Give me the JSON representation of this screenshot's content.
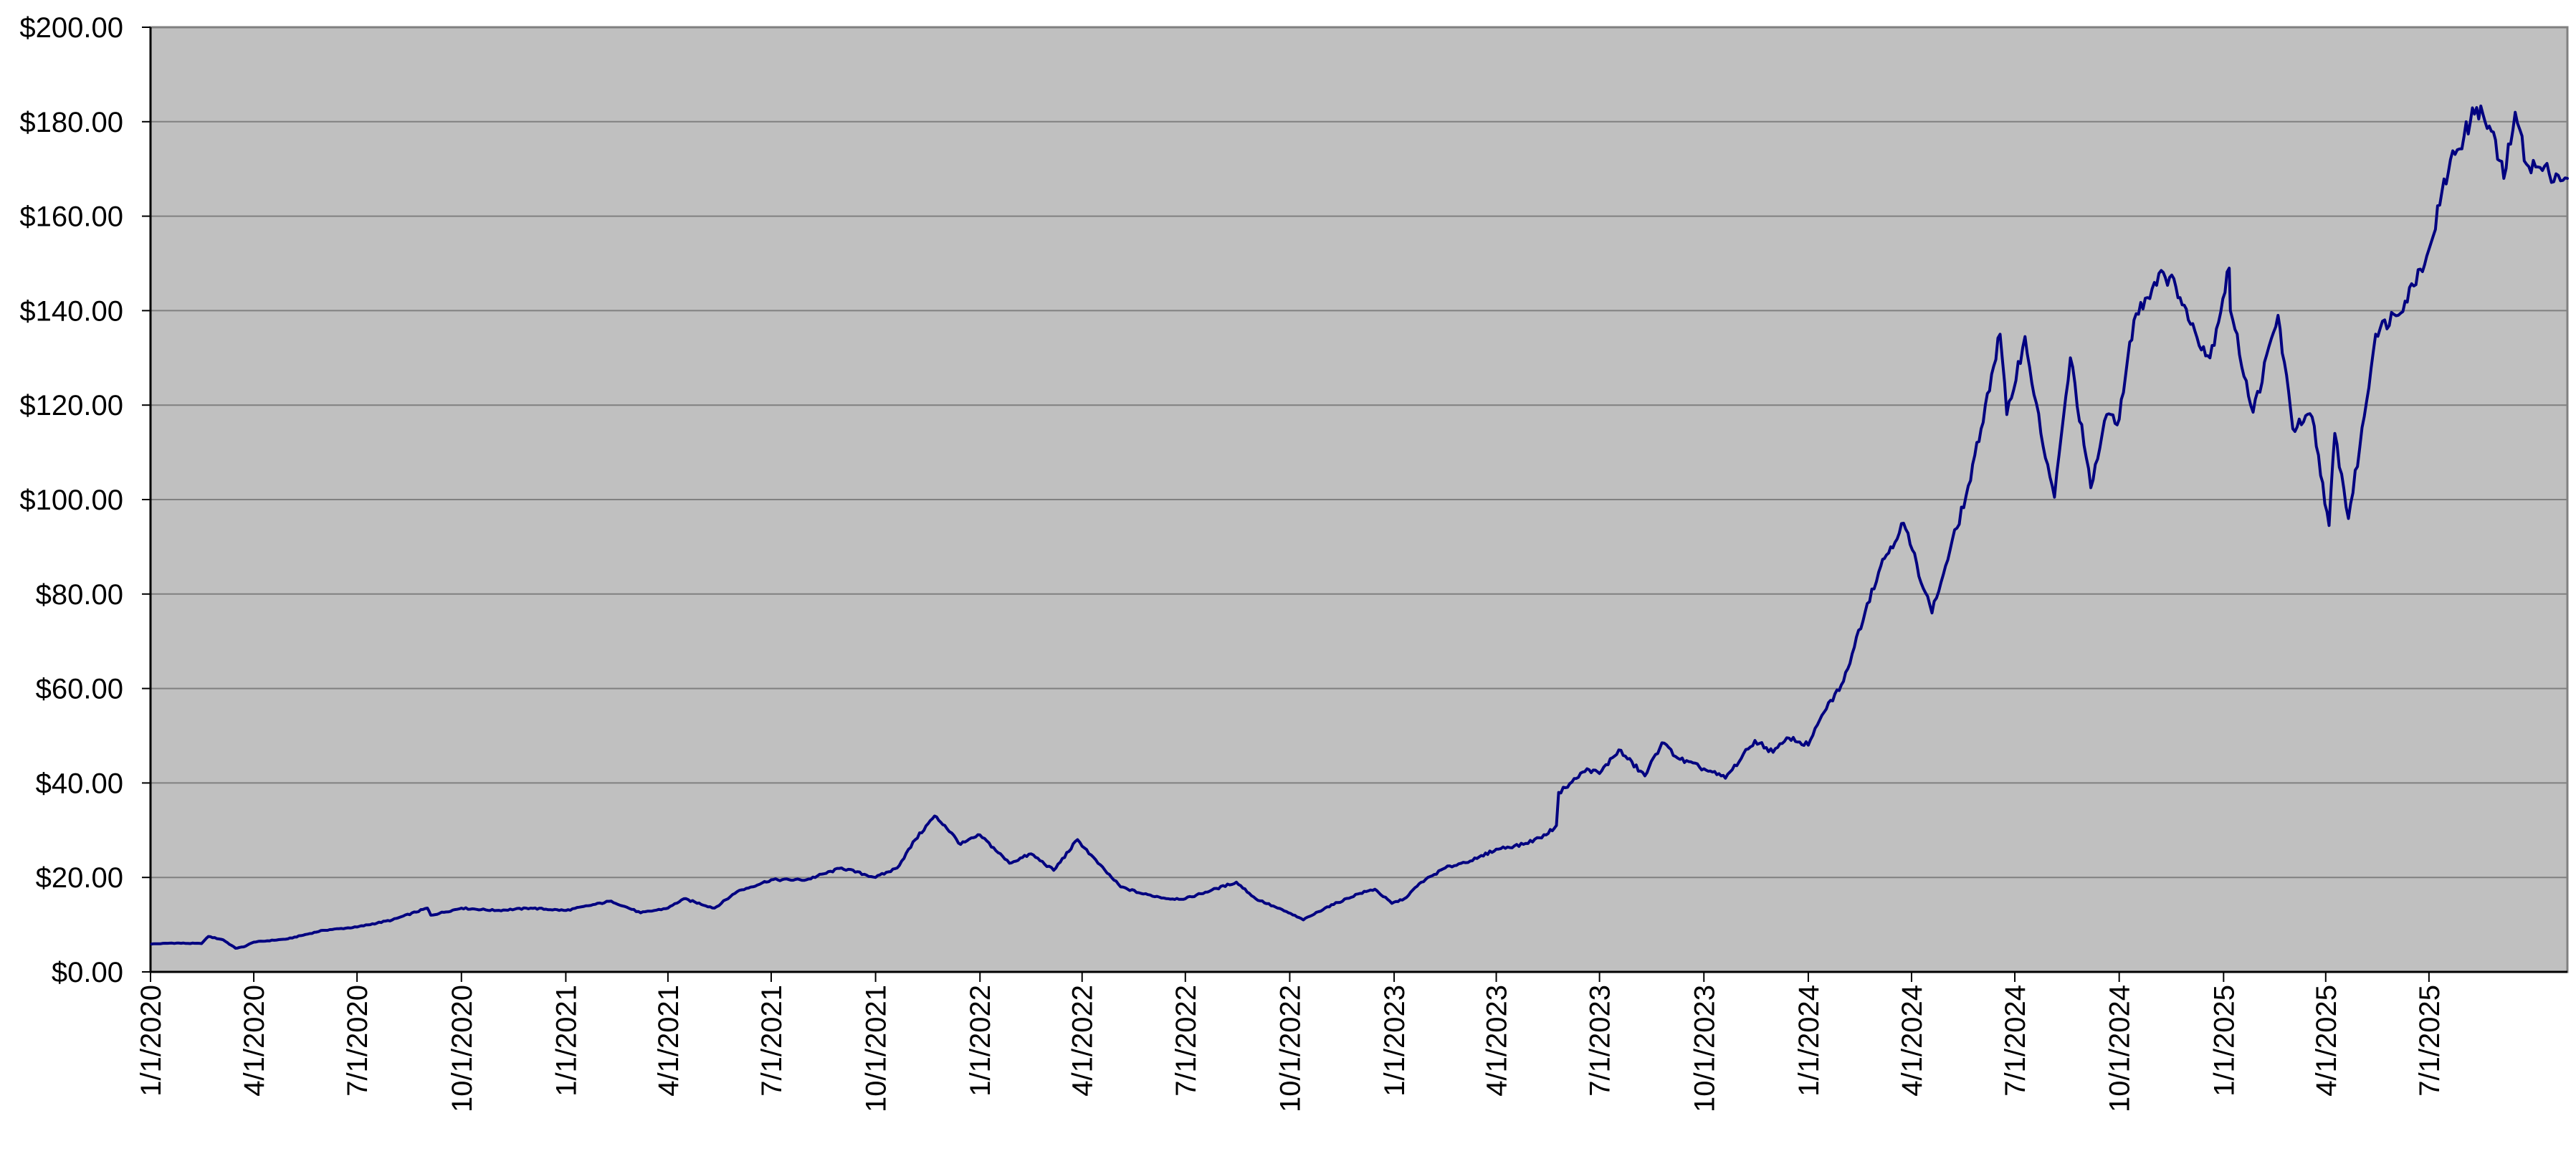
{
  "chart_data": {
    "type": "line",
    "title": "",
    "xlabel": "",
    "ylabel": "",
    "x_range": [
      "1/1/2020",
      "10/31/2025"
    ],
    "ylim": [
      0,
      200
    ],
    "grid": "horizontal",
    "legend": "none",
    "colors": {
      "plot_background": "#c0c0c0",
      "line": "#000080",
      "gridline": "#808080",
      "axis": "#000000"
    },
    "y_ticks": [
      0,
      20,
      40,
      60,
      80,
      100,
      120,
      140,
      160,
      180,
      200
    ],
    "y_tick_labels": [
      "$0.00",
      "$20.00",
      "$40.00",
      "$60.00",
      "$80.00",
      "$100.00",
      "$120.00",
      "$140.00",
      "$160.00",
      "$180.00",
      "$200.00"
    ],
    "x_tick_labels": [
      "1/1/2020",
      "4/1/2020",
      "7/1/2020",
      "10/1/2020",
      "1/1/2021",
      "4/1/2021",
      "7/1/2021",
      "10/1/2021",
      "1/1/2022",
      "4/1/2022",
      "7/1/2022",
      "10/1/2022",
      "1/1/2023",
      "4/1/2023",
      "7/1/2023",
      "10/1/2023",
      "1/1/2024",
      "4/1/2024",
      "7/1/2024",
      "10/1/2024",
      "1/1/2025",
      "4/1/2025",
      "7/1/2025"
    ],
    "series": [
      {
        "points": [
          [
            "2020-01-02",
            5.9
          ],
          [
            "2020-01-20",
            6.1
          ],
          [
            "2020-02-15",
            6.0
          ],
          [
            "2020-02-21",
            7.5
          ],
          [
            "2020-03-05",
            6.8
          ],
          [
            "2020-03-16",
            5.0
          ],
          [
            "2020-03-23",
            5.3
          ],
          [
            "2020-04-01",
            6.3
          ],
          [
            "2020-05-01",
            7.0
          ],
          [
            "2020-06-01",
            8.8
          ],
          [
            "2020-07-01",
            9.5
          ],
          [
            "2020-08-01",
            11.0
          ],
          [
            "2020-09-01",
            13.5
          ],
          [
            "2020-09-04",
            12.0
          ],
          [
            "2020-10-01",
            13.5
          ],
          [
            "2020-11-01",
            13.0
          ],
          [
            "2020-12-01",
            13.5
          ],
          [
            "2021-01-01",
            13.0
          ],
          [
            "2021-02-10",
            15.0
          ],
          [
            "2021-03-08",
            12.5
          ],
          [
            "2021-04-01",
            13.5
          ],
          [
            "2021-04-15",
            15.5
          ],
          [
            "2021-05-12",
            13.5
          ],
          [
            "2021-06-01",
            17.0
          ],
          [
            "2021-07-01",
            19.5
          ],
          [
            "2021-08-01",
            19.5
          ],
          [
            "2021-09-01",
            22.0
          ],
          [
            "2021-10-01",
            20.0
          ],
          [
            "2021-10-20",
            22.0
          ],
          [
            "2021-11-05",
            28.0
          ],
          [
            "2021-11-22",
            33.0
          ],
          [
            "2021-12-01",
            31.0
          ],
          [
            "2021-12-15",
            27.0
          ],
          [
            "2022-01-01",
            29.0
          ],
          [
            "2022-01-27",
            23.0
          ],
          [
            "2022-02-15",
            25.0
          ],
          [
            "2022-03-07",
            21.5
          ],
          [
            "2022-03-28",
            28.0
          ],
          [
            "2022-04-15",
            23.0
          ],
          [
            "2022-05-05",
            18.0
          ],
          [
            "2022-05-25",
            16.5
          ],
          [
            "2022-06-16",
            15.5
          ],
          [
            "2022-07-01",
            15.5
          ],
          [
            "2022-08-15",
            19.0
          ],
          [
            "2022-09-01",
            15.5
          ],
          [
            "2022-09-30",
            12.5
          ],
          [
            "2022-10-13",
            11.0
          ],
          [
            "2022-11-01",
            13.5
          ],
          [
            "2022-11-30",
            16.5
          ],
          [
            "2022-12-15",
            17.5
          ],
          [
            "2022-12-30",
            14.5
          ],
          [
            "2023-01-10",
            15.5
          ],
          [
            "2023-01-25",
            19.0
          ],
          [
            "2023-02-15",
            22.0
          ],
          [
            "2023-03-15",
            24.0
          ],
          [
            "2023-04-01",
            26.0
          ],
          [
            "2023-04-25",
            27.0
          ],
          [
            "2023-05-15",
            29.0
          ],
          [
            "2023-05-24",
            31.0
          ],
          [
            "2023-05-26",
            38.0
          ],
          [
            "2023-06-01",
            39.0
          ],
          [
            "2023-06-20",
            43.0
          ],
          [
            "2023-07-01",
            42.0
          ],
          [
            "2023-07-18",
            47.0
          ],
          [
            "2023-08-10",
            41.5
          ],
          [
            "2023-08-25",
            48.5
          ],
          [
            "2023-09-10",
            45.0
          ],
          [
            "2023-10-01",
            43.0
          ],
          [
            "2023-10-20",
            41.0
          ],
          [
            "2023-11-15",
            49.0
          ],
          [
            "2023-12-01",
            46.5
          ],
          [
            "2023-12-15",
            49.5
          ],
          [
            "2024-01-01",
            48.0
          ],
          [
            "2024-01-15",
            55.0
          ],
          [
            "2024-02-01",
            61.5
          ],
          [
            "2024-02-22",
            78.0
          ],
          [
            "2024-03-05",
            86.0
          ],
          [
            "2024-03-08",
            87.5
          ],
          [
            "2024-03-25",
            95.0
          ],
          [
            "2024-04-19",
            76.0
          ],
          [
            "2024-05-01",
            86.0
          ],
          [
            "2024-05-23",
            104.0
          ],
          [
            "2024-06-05",
            120.0
          ],
          [
            "2024-06-18",
            135.0
          ],
          [
            "2024-06-24",
            118.0
          ],
          [
            "2024-07-10",
            134.5
          ],
          [
            "2024-07-24",
            114.0
          ],
          [
            "2024-08-05",
            100.5
          ],
          [
            "2024-08-19",
            130.0
          ],
          [
            "2024-09-06",
            102.5
          ],
          [
            "2024-09-20",
            118.0
          ],
          [
            "2024-10-01",
            117.0
          ],
          [
            "2024-10-14",
            138.0
          ],
          [
            "2024-11-07",
            148.5
          ],
          [
            "2024-11-20",
            145.0
          ],
          [
            "2024-12-01",
            138.0
          ],
          [
            "2024-12-20",
            130.0
          ],
          [
            "2025-01-06",
            149.0
          ],
          [
            "2025-01-07",
            140.0
          ],
          [
            "2025-01-27",
            118.5
          ],
          [
            "2025-02-18",
            139.0
          ],
          [
            "2025-03-03",
            115.0
          ],
          [
            "2025-03-20",
            117.5
          ],
          [
            "2025-04-04",
            94.5
          ],
          [
            "2025-04-09",
            114.0
          ],
          [
            "2025-04-21",
            96.0
          ],
          [
            "2025-05-01",
            111.0
          ],
          [
            "2025-05-15",
            135.0
          ],
          [
            "2025-06-10",
            142.0
          ],
          [
            "2025-07-01",
            153.0
          ],
          [
            "2025-07-20",
            172.0
          ],
          [
            "2025-08-01",
            177.0
          ],
          [
            "2025-08-12",
            183.0
          ],
          [
            "2025-08-25",
            178.0
          ],
          [
            "2025-09-05",
            168.0
          ],
          [
            "2025-09-15",
            182.0
          ],
          [
            "2025-09-25",
            171.0
          ],
          [
            "2025-10-31",
            168.0
          ]
        ]
      }
    ]
  }
}
